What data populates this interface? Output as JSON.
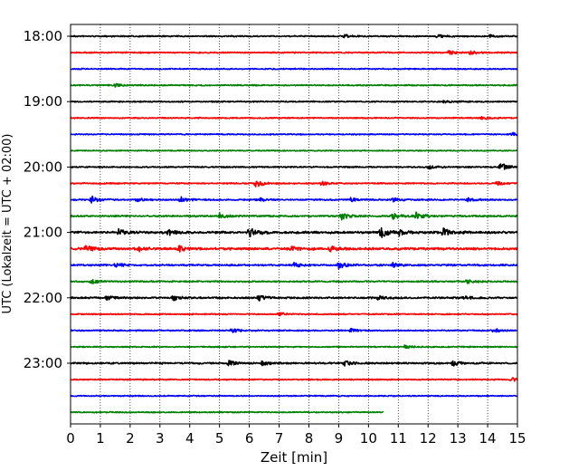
{
  "chart_data": {
    "type": "line",
    "title": "",
    "xlabel": "Zeit  [min]",
    "ylabel": "UTC (Lokalzeit = UTC + 02:00)",
    "xlim": [
      0,
      15
    ],
    "x_ticks": [
      "0",
      "1",
      "2",
      "3",
      "4",
      "5",
      "6",
      "7",
      "8",
      "9",
      "10",
      "11",
      "12",
      "13",
      "14",
      "15"
    ],
    "y_tick_labels": [
      "18:00",
      "19:00",
      "20:00",
      "21:00",
      "22:00",
      "23:00"
    ],
    "grid": {
      "x": "dotted",
      "y": "off"
    },
    "legend": "none",
    "colors": {
      "black": "#000000",
      "red": "#ff0000",
      "blue": "#0000ff",
      "green": "#008000"
    },
    "series": [
      {
        "start": "18:00",
        "end_min": 15,
        "color": "black",
        "amplitude": 0.35,
        "events": [
          [
            9.2,
            0.9
          ],
          [
            12.3,
            0.9
          ],
          [
            14.0,
            0.8
          ]
        ]
      },
      {
        "start": "18:15",
        "end_min": 15,
        "color": "red",
        "amplitude": 0.35,
        "events": [
          [
            12.7,
            1.2
          ],
          [
            13.4,
            0.8
          ]
        ]
      },
      {
        "start": "18:30",
        "end_min": 15,
        "color": "blue",
        "amplitude": 0.33,
        "events": []
      },
      {
        "start": "18:45",
        "end_min": 15,
        "color": "green",
        "amplitude": 0.35,
        "events": [
          [
            1.5,
            0.8
          ]
        ]
      },
      {
        "start": "19:00",
        "end_min": 15,
        "color": "black",
        "amplitude": 0.35,
        "events": [
          [
            12.5,
            0.6
          ]
        ]
      },
      {
        "start": "19:15",
        "end_min": 15,
        "color": "red",
        "amplitude": 0.32,
        "events": [
          [
            13.8,
            0.8
          ]
        ]
      },
      {
        "start": "19:30",
        "end_min": 15,
        "color": "blue",
        "amplitude": 0.32,
        "events": [
          [
            14.8,
            0.8
          ]
        ]
      },
      {
        "start": "19:45",
        "end_min": 15,
        "color": "green",
        "amplitude": 0.28,
        "events": []
      },
      {
        "start": "20:00",
        "end_min": 15,
        "color": "black",
        "amplitude": 0.35,
        "events": [
          [
            12.0,
            1.2
          ],
          [
            14.4,
            2.2
          ]
        ]
      },
      {
        "start": "20:15",
        "end_min": 15,
        "color": "red",
        "amplitude": 0.35,
        "events": [
          [
            6.2,
            2.3
          ],
          [
            8.4,
            1.0
          ],
          [
            14.3,
            0.8
          ]
        ]
      },
      {
        "start": "20:30",
        "end_min": 15,
        "color": "blue",
        "amplitude": 0.4,
        "events": [
          [
            0.7,
            1.8
          ],
          [
            2.2,
            0.9
          ],
          [
            3.7,
            1.4
          ],
          [
            6.3,
            0.9
          ],
          [
            9.4,
            0.9
          ],
          [
            10.8,
            0.9
          ],
          [
            13.3,
            0.8
          ]
        ]
      },
      {
        "start": "20:45",
        "end_min": 15,
        "color": "green",
        "amplitude": 0.45,
        "events": [
          [
            5.0,
            1.4
          ],
          [
            9.1,
            1.8
          ],
          [
            10.8,
            2.0
          ],
          [
            11.6,
            1.6
          ]
        ]
      },
      {
        "start": "21:00",
        "end_min": 15,
        "color": "black",
        "amplitude": 0.6,
        "events": [
          [
            1.6,
            1.8
          ],
          [
            3.3,
            1.4
          ],
          [
            6.0,
            2.6
          ],
          [
            10.4,
            2.8
          ],
          [
            11.0,
            1.4
          ],
          [
            12.5,
            2.2
          ]
        ]
      },
      {
        "start": "21:15",
        "end_min": 15,
        "color": "red",
        "amplitude": 0.6,
        "events": [
          [
            0.5,
            1.6
          ],
          [
            2.3,
            1.2
          ],
          [
            3.6,
            1.6
          ],
          [
            7.4,
            1.0
          ],
          [
            8.7,
            1.2
          ]
        ]
      },
      {
        "start": "21:30",
        "end_min": 15,
        "color": "blue",
        "amplitude": 0.45,
        "events": [
          [
            1.5,
            1.0
          ],
          [
            7.5,
            1.0
          ],
          [
            9.0,
            1.6
          ],
          [
            10.8,
            1.0
          ]
        ]
      },
      {
        "start": "21:45",
        "end_min": 15,
        "color": "green",
        "amplitude": 0.4,
        "events": [
          [
            0.7,
            1.2
          ],
          [
            13.3,
            1.0
          ]
        ]
      },
      {
        "start": "22:00",
        "end_min": 15,
        "color": "black",
        "amplitude": 0.45,
        "events": [
          [
            1.2,
            1.0
          ],
          [
            3.4,
            1.6
          ],
          [
            6.3,
            1.4
          ],
          [
            10.3,
            0.9
          ],
          [
            13.2,
            0.9
          ]
        ]
      },
      {
        "start": "22:15",
        "end_min": 15,
        "color": "red",
        "amplitude": 0.33,
        "events": [
          [
            7.0,
            0.7
          ]
        ]
      },
      {
        "start": "22:30",
        "end_min": 15,
        "color": "blue",
        "amplitude": 0.35,
        "events": [
          [
            5.4,
            1.0
          ],
          [
            9.4,
            0.8
          ],
          [
            14.2,
            1.0
          ]
        ]
      },
      {
        "start": "22:45",
        "end_min": 15,
        "color": "green",
        "amplitude": 0.32,
        "events": [
          [
            11.2,
            0.8
          ]
        ]
      },
      {
        "start": "23:00",
        "end_min": 15,
        "color": "black",
        "amplitude": 0.45,
        "events": [
          [
            5.3,
            1.4
          ],
          [
            6.4,
            1.0
          ],
          [
            9.2,
            1.0
          ],
          [
            12.8,
            1.3
          ]
        ]
      },
      {
        "start": "23:15",
        "end_min": 15,
        "color": "red",
        "amplitude": 0.33,
        "events": [
          [
            14.8,
            0.9
          ]
        ]
      },
      {
        "start": "23:30",
        "end_min": 15,
        "color": "blue",
        "amplitude": 0.3,
        "events": []
      },
      {
        "start": "23:45",
        "end_min": 10.5,
        "color": "green",
        "amplitude": 0.3,
        "events": []
      }
    ]
  }
}
